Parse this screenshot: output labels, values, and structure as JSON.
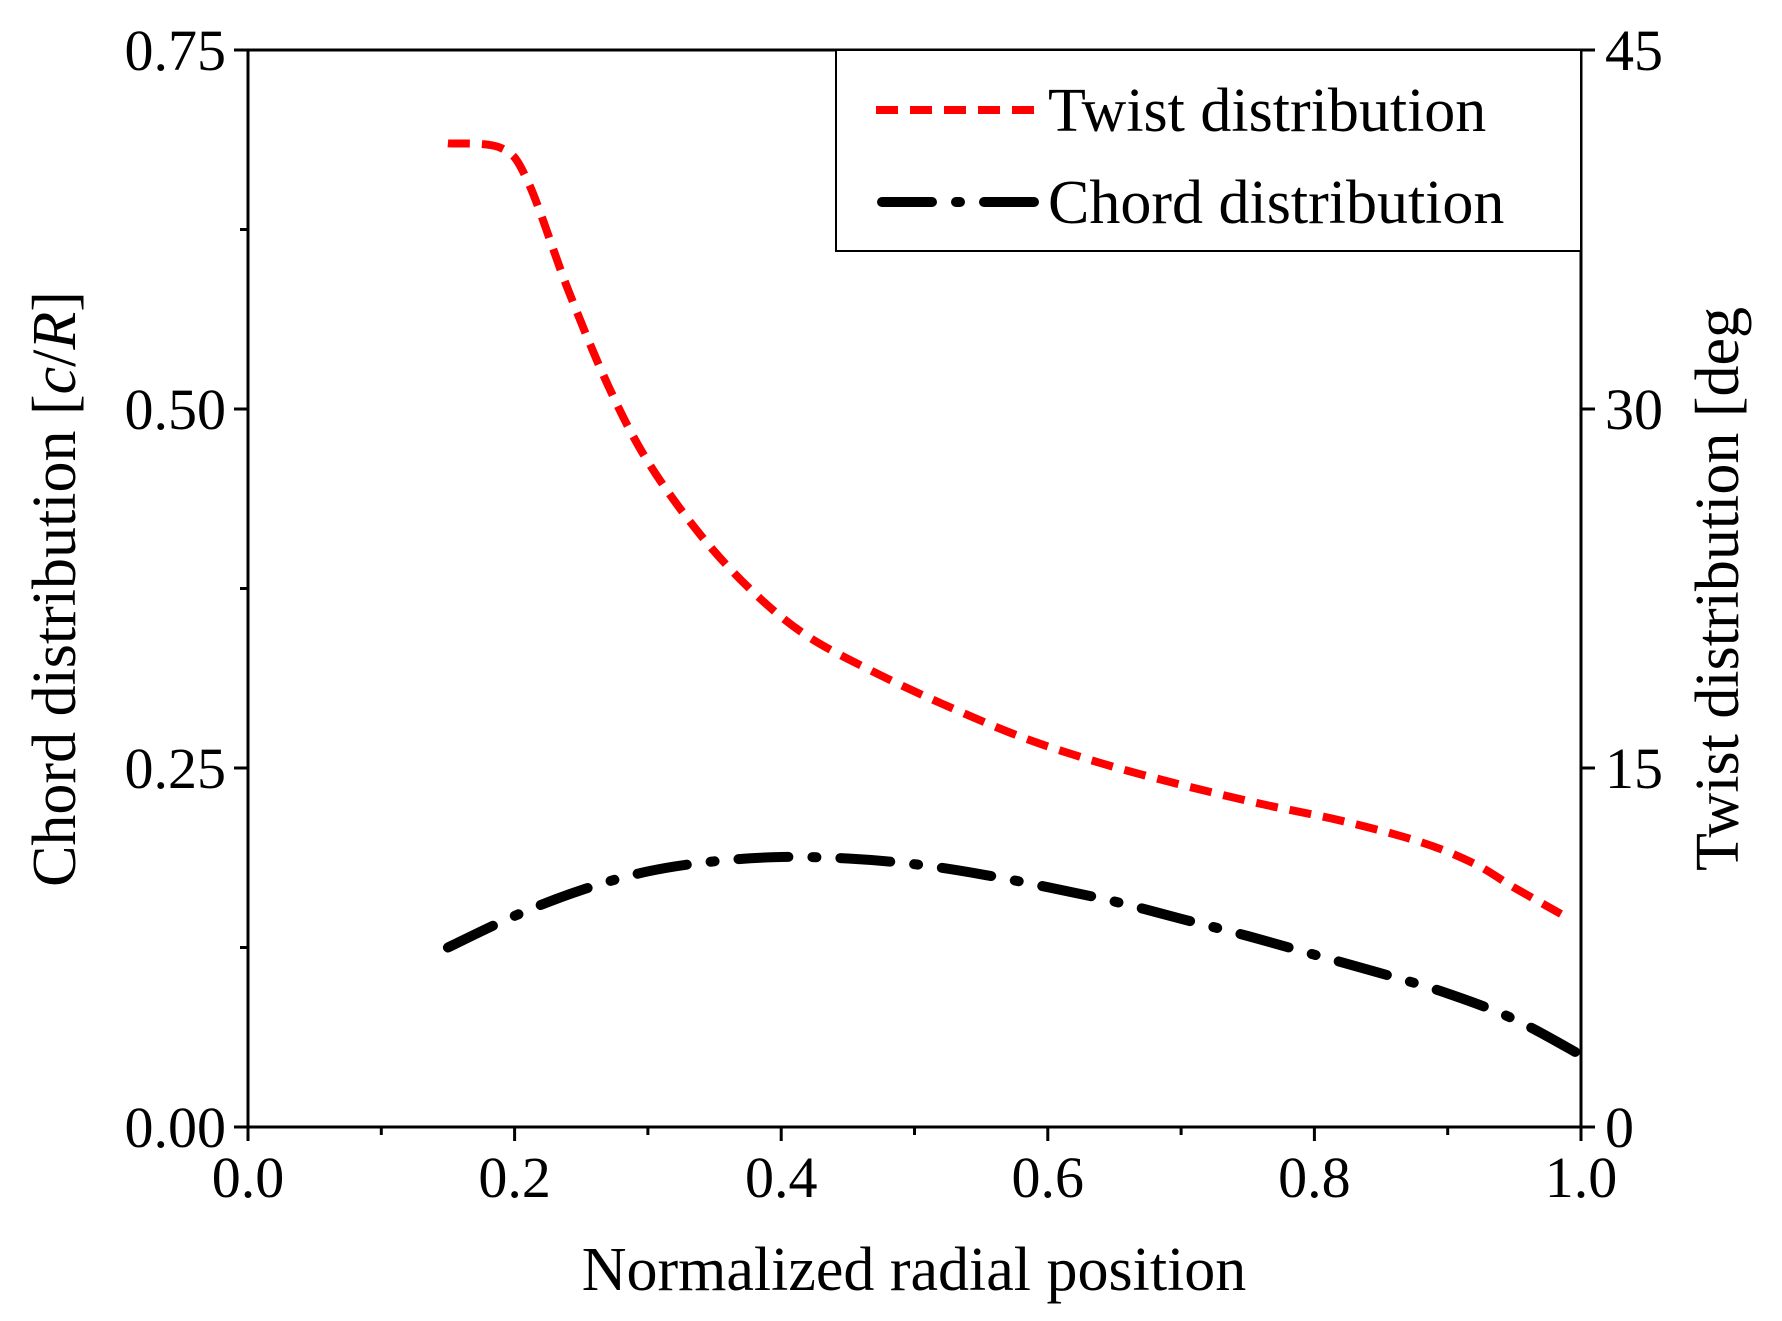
{
  "chart_data": {
    "type": "line",
    "xlabel": "Normalized radial position",
    "ylabel_left_parts": [
      "Chord distribution [",
      "c",
      "/",
      "R",
      "]"
    ],
    "ylabel_right": "Twist distribution [deg",
    "xlim": [
      0.0,
      1.0
    ],
    "ylim_left": [
      0.0,
      0.75
    ],
    "ylim_right": [
      0,
      45
    ],
    "x_ticks": [
      "0.0",
      "0.2",
      "0.4",
      "0.6",
      "0.8",
      "1.0"
    ],
    "y_left_ticks": [
      "0.00",
      "0.25",
      "0.50",
      "0.75"
    ],
    "y_right_ticks": [
      "0",
      "15",
      "30",
      "45"
    ],
    "x_tick_values": [
      0.0,
      0.2,
      0.4,
      0.6,
      0.8,
      1.0
    ],
    "y_left_tick_values": [
      0.0,
      0.25,
      0.5,
      0.75
    ],
    "y_right_tick_values": [
      0,
      15,
      30,
      45
    ],
    "x_minor_tick_values": [
      0.1,
      0.3,
      0.5,
      0.7,
      0.9
    ],
    "y_left_minor_tick_values": [
      0.125,
      0.375,
      0.625
    ],
    "legend_position": "top-right",
    "series": [
      {
        "name": "Twist distribution",
        "axis": "right",
        "color": "#ff0000",
        "style": "dash",
        "x": [
          0.15,
          0.19,
          0.21,
          0.24,
          0.27,
          0.3,
          0.34,
          0.38,
          0.42,
          0.47,
          0.52,
          0.58,
          0.64,
          0.7,
          0.76,
          0.82,
          0.88,
          0.92,
          0.95,
          0.985
        ],
        "y": [
          41.1,
          40.9,
          39.5,
          35.0,
          31.0,
          27.8,
          24.7,
          22.3,
          20.5,
          19.0,
          17.7,
          16.3,
          15.2,
          14.3,
          13.5,
          12.8,
          11.9,
          11.0,
          10.0,
          8.9
        ]
      },
      {
        "name": "Chord distribution",
        "axis": "left",
        "color": "#000000",
        "style": "dashdot",
        "x": [
          0.15,
          0.2,
          0.25,
          0.3,
          0.35,
          0.4,
          0.45,
          0.5,
          0.55,
          0.6,
          0.65,
          0.7,
          0.75,
          0.8,
          0.85,
          0.9,
          0.95,
          1.0
        ],
        "y": [
          0.125,
          0.147,
          0.165,
          0.178,
          0.185,
          0.188,
          0.187,
          0.183,
          0.176,
          0.167,
          0.157,
          0.145,
          0.133,
          0.12,
          0.107,
          0.093,
          0.075,
          0.05
        ]
      }
    ]
  }
}
